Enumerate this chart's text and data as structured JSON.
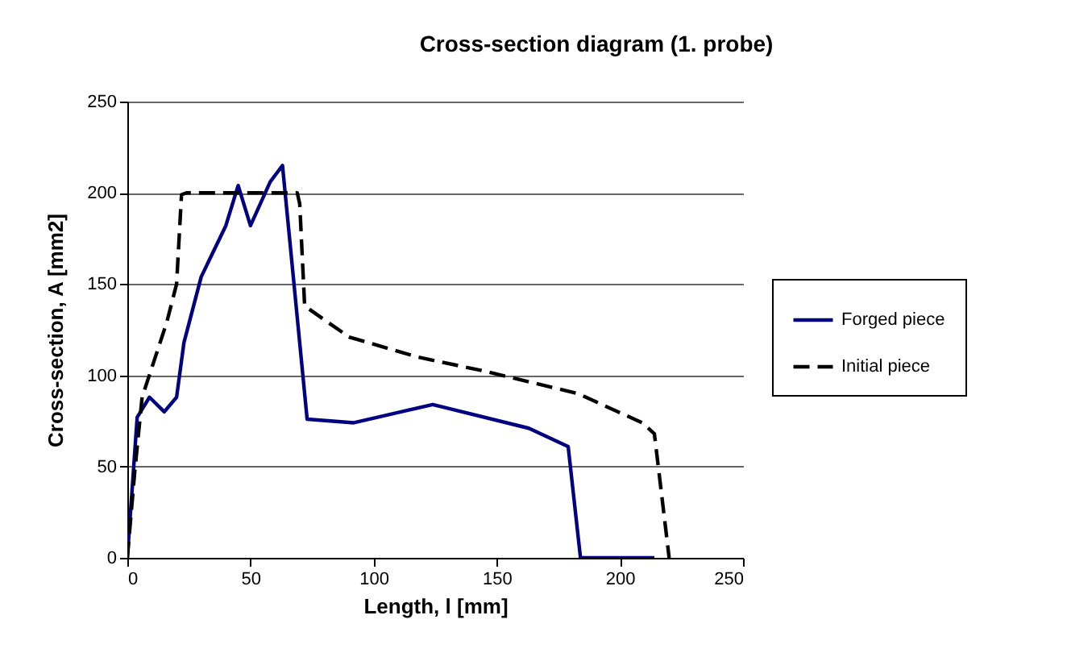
{
  "chart_data": {
    "type": "line",
    "title": "Cross-section diagram (1. probe)",
    "xlabel": "Length, l [mm]",
    "ylabel": "Cross-section, A [mm2]",
    "xlim": [
      0,
      250
    ],
    "xticks": [
      0,
      50,
      100,
      150,
      200,
      250
    ],
    "ylim": [
      0,
      250
    ],
    "yticks": [
      0,
      50,
      100,
      150,
      200,
      250
    ],
    "grid": "y",
    "legend": "right",
    "series": [
      {
        "name": "Forged piece",
        "color": "#000080",
        "line_style": "solid",
        "x": [
          0,
          4,
          9,
          15,
          20,
          23,
          30,
          40,
          45,
          50,
          58,
          63,
          73,
          92,
          124,
          163,
          179,
          184,
          214
        ],
        "values": [
          0,
          77,
          88,
          80,
          88,
          118,
          154,
          182,
          204,
          182,
          206,
          215,
          76,
          74,
          84,
          71,
          61,
          0,
          0
        ]
      },
      {
        "name": "Initial piece",
        "color": "#000000",
        "line_style": "dashed",
        "x": [
          0,
          3,
          6,
          16,
          20,
          22,
          24,
          69,
          70,
          72,
          90,
          118,
          146,
          183,
          209,
          214,
          220
        ],
        "values": [
          0,
          47,
          88,
          129,
          150,
          199,
          200,
          200,
          194,
          138,
          121,
          110,
          102,
          90,
          74,
          68,
          0
        ]
      }
    ]
  }
}
